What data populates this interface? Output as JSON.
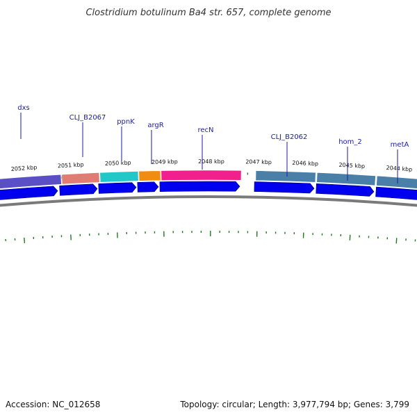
{
  "title": "Clostridium botulinum Ba4 str. 657, complete genome",
  "footer": {
    "accession": "Accession: NC_012658",
    "summary": "Topology: circular; Length: 3,977,794 bp; Genes: 3,799"
  },
  "colors": {
    "gene_arrow": "#0000ee",
    "backbone": "#808080",
    "tick": "#1e7a1e",
    "label": "#1a1aa8"
  },
  "scale_ticks": [
    "2052 kbp",
    "2051 kbp",
    "2050 kbp",
    "2049 kbp",
    "2048 kbp",
    "2047 kbp",
    "2046 kbp",
    "2045 kbp",
    "2044 kbp"
  ],
  "gene_labels": [
    "dxs",
    "CLJ_B2067",
    "ppnK",
    "argR",
    "recN",
    "CLJ_B2062",
    "hom_2",
    "metA"
  ],
  "feature_colors": [
    "#5a4fc4",
    "#e07c74",
    "#22c8c8",
    "#f08c10",
    "#f0208c",
    "#4a7fa8",
    "#4a7fa8",
    "#4a7fa8"
  ]
}
